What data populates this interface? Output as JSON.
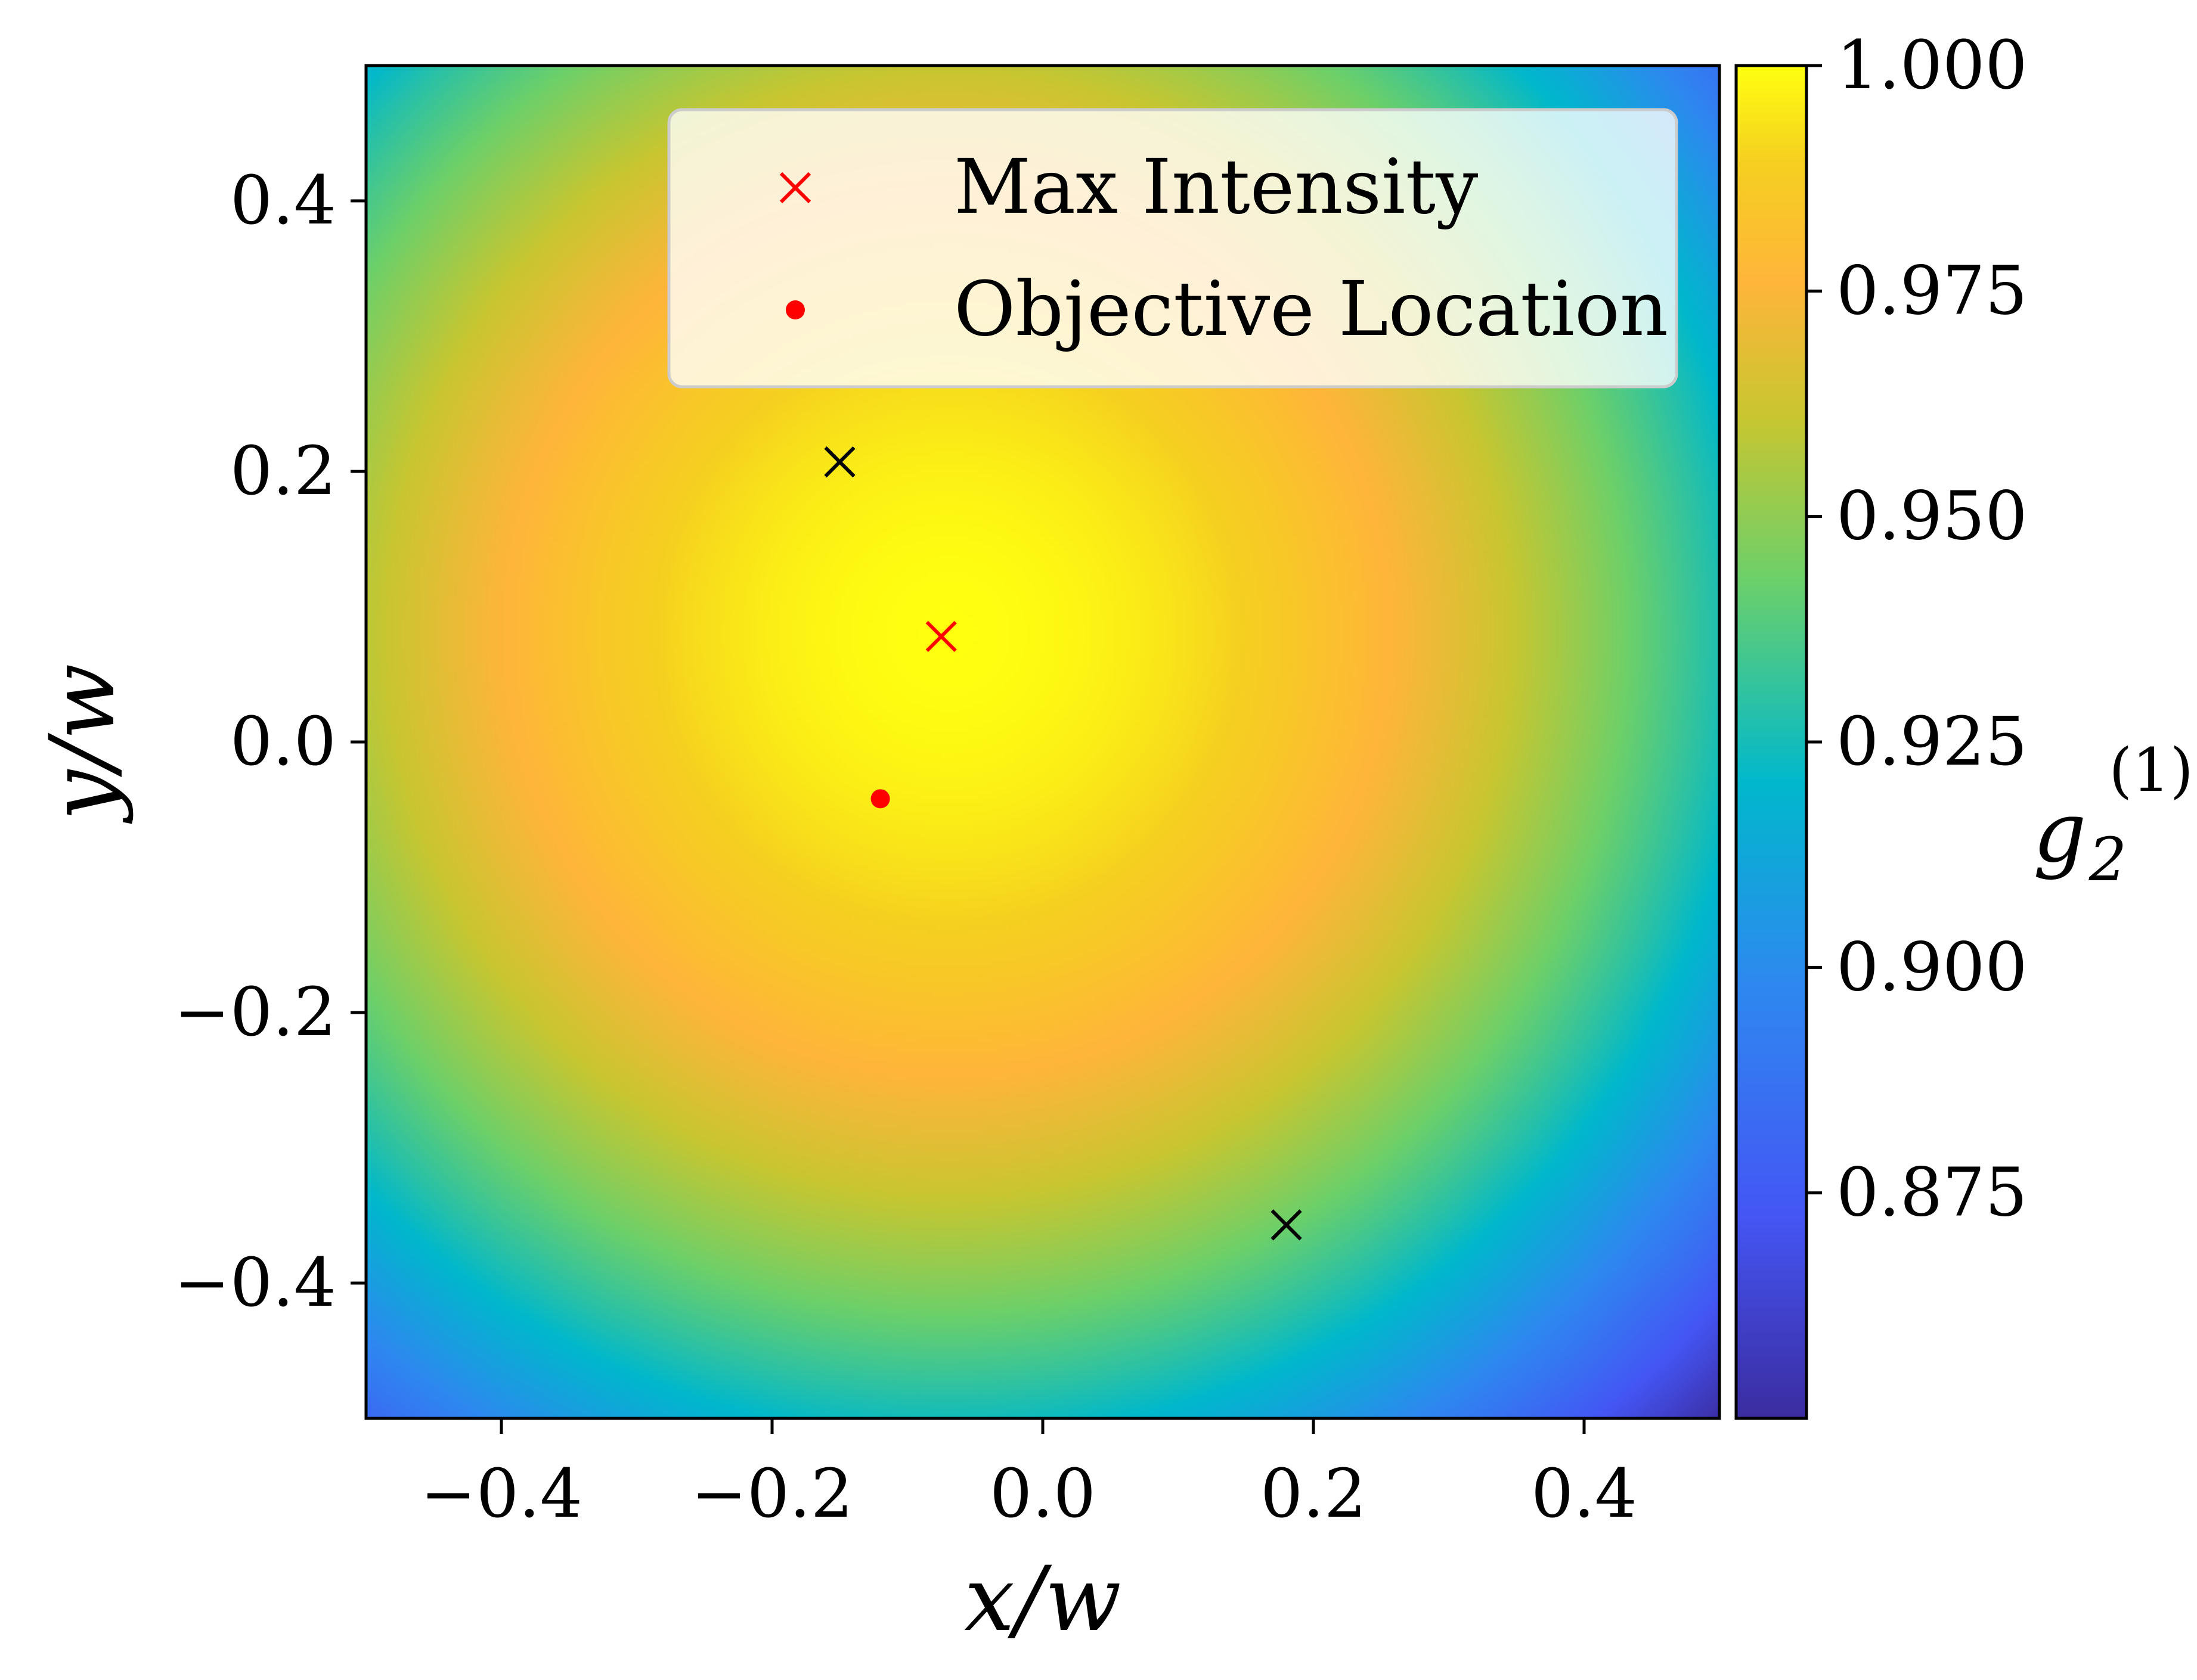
{
  "chart_data": {
    "type": "heatmap",
    "xlabel": "x/w",
    "ylabel": "y/w",
    "xlim": [
      -0.5,
      0.5
    ],
    "ylim": [
      -0.5,
      0.5
    ],
    "x_ticks": [
      {
        "value": -0.4,
        "label": "−0.4"
      },
      {
        "value": -0.2,
        "label": "−0.2"
      },
      {
        "value": 0.0,
        "label": "0.0"
      },
      {
        "value": 0.2,
        "label": "0.2"
      },
      {
        "value": 0.4,
        "label": "0.4"
      }
    ],
    "y_ticks": [
      {
        "value": 0.4,
        "label": "0.4"
      },
      {
        "value": 0.2,
        "label": "0.2"
      },
      {
        "value": 0.0,
        "label": "0.0"
      },
      {
        "value": -0.2,
        "label": "−0.2"
      },
      {
        "value": -0.4,
        "label": "−0.4"
      }
    ],
    "colorbar": {
      "label_main": "g",
      "label_sub": "2",
      "label_sup": "(1)",
      "range": [
        0.85,
        1.0
      ],
      "ticks": [
        {
          "value": 1.0,
          "label": "1.000"
        },
        {
          "value": 0.975,
          "label": "0.975"
        },
        {
          "value": 0.95,
          "label": "0.950"
        },
        {
          "value": 0.925,
          "label": "0.925"
        },
        {
          "value": 0.9,
          "label": "0.900"
        },
        {
          "value": 0.875,
          "label": "0.875"
        }
      ]
    },
    "field": {
      "description_free": true,
      "center": [
        -0.07,
        0.08
      ],
      "peak": 1.0,
      "falloff_per_unit_r2": 0.225,
      "min_clip": 0.85
    },
    "legend": {
      "placement": "upper-right",
      "entries": [
        {
          "label": "Max Intensity",
          "marker": "x",
          "color": "#ff0000"
        },
        {
          "label": "Objective Location",
          "marker": "dot",
          "color": "#ff0000"
        }
      ]
    },
    "points": [
      {
        "x": -0.075,
        "y": 0.078,
        "marker": "x",
        "color": "#ff0000"
      },
      {
        "x": -0.12,
        "y": -0.042,
        "marker": "dot",
        "color": "#ff0000"
      },
      {
        "x": -0.15,
        "y": 0.207,
        "marker": "x",
        "color": "#000000"
      },
      {
        "x": 0.18,
        "y": -0.357,
        "marker": "x",
        "color": "#000000"
      }
    ],
    "colormap_stops": [
      {
        "v": 0.0,
        "color": "#3b2ca0"
      },
      {
        "v": 0.15,
        "color": "#4456f4"
      },
      {
        "v": 0.32,
        "color": "#2e88f0"
      },
      {
        "v": 0.47,
        "color": "#00b8cc"
      },
      {
        "v": 0.62,
        "color": "#6cd06a"
      },
      {
        "v": 0.74,
        "color": "#c8c630"
      },
      {
        "v": 0.84,
        "color": "#ffb53a"
      },
      {
        "v": 0.93,
        "color": "#f5d020"
      },
      {
        "v": 1.0,
        "color": "#ffff10"
      }
    ]
  }
}
